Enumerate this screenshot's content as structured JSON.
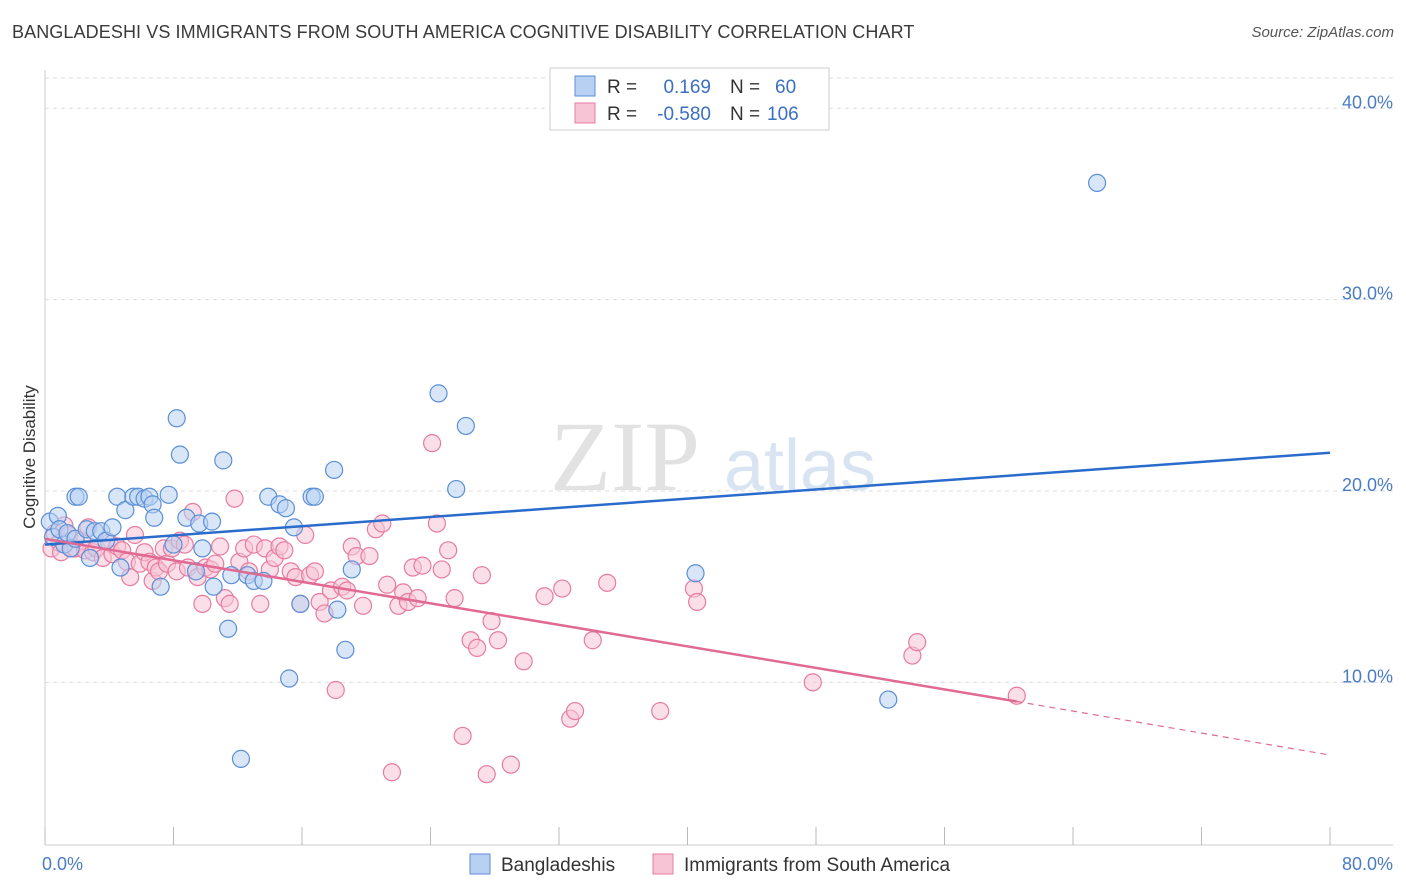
{
  "title": "BANGLADESHI VS IMMIGRANTS FROM SOUTH AMERICA COGNITIVE DISABILITY CORRELATION CHART",
  "source": "Source: ZipAtlas.com",
  "watermark": {
    "zip": "ZIP",
    "atlas": "atlas"
  },
  "colors": {
    "blue": "#5b8fd6",
    "blue_fill": "#b8d1f2",
    "blue_line": "#2a6ccc",
    "pink": "#e87ba0",
    "pink_fill": "#f7c4d6",
    "pink_line": "#e06a93",
    "axis_text": "#4a7cc4",
    "grid": "#dddddd"
  },
  "legend": {
    "r_label": "R =",
    "n_label": "N =",
    "rows": [
      {
        "r": "0.169",
        "n": "60"
      },
      {
        "r": "-0.580",
        "n": "106"
      }
    ]
  },
  "bottom_legend": [
    "Bangladeshis",
    "Immigrants from South America"
  ],
  "chart_data": {
    "type": "scatter",
    "title": "BANGLADESHI VS IMMIGRANTS FROM SOUTH AMERICA COGNITIVE DISABILITY CORRELATION CHART",
    "xlabel": "",
    "ylabel": "Cognitive Disability",
    "xlim": [
      0,
      80
    ],
    "ylim": [
      1.5,
      42
    ],
    "x_tick_labels": [
      "0.0%",
      "80.0%"
    ],
    "y_ticks": [
      10,
      20,
      30,
      40
    ],
    "y_tick_labels": [
      "10.0%",
      "20.0%",
      "30.0%",
      "40.0%"
    ],
    "series": [
      {
        "name": "Bangladeshis",
        "r": 0.169,
        "n": 60,
        "trend": {
          "x0": 0,
          "y0": 17.2,
          "x1": 80,
          "y1": 22.0
        },
        "points": [
          [
            0.3,
            18.4
          ],
          [
            0.5,
            17.6
          ],
          [
            0.8,
            18.7
          ],
          [
            0.9,
            18.0
          ],
          [
            1.2,
            17.2
          ],
          [
            1.4,
            17.8
          ],
          [
            1.6,
            17.0
          ],
          [
            1.9,
            17.5
          ],
          [
            1.9,
            19.7
          ],
          [
            2.1,
            19.7
          ],
          [
            2.6,
            18.0
          ],
          [
            2.8,
            16.5
          ],
          [
            3.1,
            17.9
          ],
          [
            3.5,
            17.9
          ],
          [
            3.8,
            17.4
          ],
          [
            4.2,
            18.1
          ],
          [
            4.5,
            19.7
          ],
          [
            4.7,
            16.0
          ],
          [
            5.0,
            19.0
          ],
          [
            5.5,
            19.7
          ],
          [
            5.8,
            19.7
          ],
          [
            6.2,
            19.6
          ],
          [
            6.5,
            19.7
          ],
          [
            6.7,
            19.3
          ],
          [
            6.8,
            18.6
          ],
          [
            7.2,
            15.0
          ],
          [
            7.7,
            19.8
          ],
          [
            8.0,
            17.2
          ],
          [
            8.2,
            23.8
          ],
          [
            8.4,
            21.9
          ],
          [
            8.8,
            18.6
          ],
          [
            9.4,
            15.8
          ],
          [
            9.6,
            18.3
          ],
          [
            9.8,
            17.0
          ],
          [
            10.4,
            18.4
          ],
          [
            10.5,
            15.0
          ],
          [
            11.1,
            21.6
          ],
          [
            11.4,
            12.8
          ],
          [
            11.6,
            15.6
          ],
          [
            12.2,
            6.0
          ],
          [
            12.6,
            15.6
          ],
          [
            13.0,
            15.3
          ],
          [
            13.6,
            15.3
          ],
          [
            13.9,
            19.7
          ],
          [
            14.6,
            19.3
          ],
          [
            15.0,
            19.1
          ],
          [
            15.2,
            10.2
          ],
          [
            15.5,
            18.1
          ],
          [
            15.9,
            14.1
          ],
          [
            16.6,
            19.7
          ],
          [
            16.8,
            19.7
          ],
          [
            18.0,
            21.1
          ],
          [
            18.2,
            13.8
          ],
          [
            18.7,
            11.7
          ],
          [
            19.1,
            15.9
          ],
          [
            24.5,
            25.1
          ],
          [
            25.6,
            20.1
          ],
          [
            26.2,
            23.4
          ],
          [
            40.5,
            15.7
          ],
          [
            52.5,
            9.1
          ],
          [
            65.5,
            36.1
          ]
        ]
      },
      {
        "name": "Immigrants from South America",
        "r": -0.58,
        "n": 106,
        "trend": {
          "x0": 0,
          "y0": 17.5,
          "x1": 60.5,
          "y1": 9.0
        },
        "trend_dashed": {
          "x0": 60.5,
          "y0": 9.0,
          "x1": 80,
          "y1": 6.2
        },
        "points": [
          [
            0.4,
            17.0
          ],
          [
            0.6,
            17.8
          ],
          [
            0.9,
            17.3
          ],
          [
            1.0,
            16.8
          ],
          [
            1.2,
            18.2
          ],
          [
            1.5,
            17.7
          ],
          [
            1.7,
            17.0
          ],
          [
            1.9,
            17.0
          ],
          [
            2.3,
            17.4
          ],
          [
            2.5,
            16.9
          ],
          [
            2.7,
            18.1
          ],
          [
            3.0,
            16.8
          ],
          [
            3.2,
            17.0
          ],
          [
            3.6,
            16.5
          ],
          [
            4.0,
            17.3
          ],
          [
            4.2,
            16.7
          ],
          [
            4.5,
            17.1
          ],
          [
            4.8,
            16.9
          ],
          [
            5.1,
            16.3
          ],
          [
            5.3,
            15.5
          ],
          [
            5.6,
            17.7
          ],
          [
            5.9,
            16.2
          ],
          [
            6.2,
            16.8
          ],
          [
            6.5,
            16.3
          ],
          [
            6.7,
            15.3
          ],
          [
            6.9,
            16.0
          ],
          [
            7.1,
            15.8
          ],
          [
            7.4,
            17.0
          ],
          [
            7.6,
            16.2
          ],
          [
            7.9,
            17.0
          ],
          [
            8.2,
            15.8
          ],
          [
            8.4,
            17.4
          ],
          [
            8.7,
            17.2
          ],
          [
            8.9,
            16.0
          ],
          [
            9.2,
            18.9
          ],
          [
            9.5,
            15.5
          ],
          [
            9.8,
            14.1
          ],
          [
            10.0,
            16.0
          ],
          [
            10.3,
            15.9
          ],
          [
            10.6,
            16.2
          ],
          [
            10.9,
            17.1
          ],
          [
            11.2,
            14.4
          ],
          [
            11.5,
            14.1
          ],
          [
            11.8,
            19.6
          ],
          [
            12.1,
            16.3
          ],
          [
            12.4,
            17.0
          ],
          [
            12.7,
            15.8
          ],
          [
            13.0,
            17.2
          ],
          [
            13.4,
            14.1
          ],
          [
            13.7,
            17.0
          ],
          [
            14.0,
            15.9
          ],
          [
            14.3,
            16.5
          ],
          [
            14.6,
            17.1
          ],
          [
            14.9,
            16.9
          ],
          [
            15.3,
            15.8
          ],
          [
            15.6,
            15.5
          ],
          [
            15.9,
            14.1
          ],
          [
            16.2,
            17.7
          ],
          [
            16.5,
            15.6
          ],
          [
            16.8,
            15.8
          ],
          [
            17.1,
            14.2
          ],
          [
            17.4,
            13.6
          ],
          [
            17.8,
            14.8
          ],
          [
            18.1,
            9.6
          ],
          [
            18.5,
            15.0
          ],
          [
            18.8,
            14.8
          ],
          [
            19.1,
            17.1
          ],
          [
            19.4,
            16.6
          ],
          [
            19.8,
            14.0
          ],
          [
            20.2,
            16.6
          ],
          [
            20.6,
            18.0
          ],
          [
            21.0,
            18.3
          ],
          [
            21.3,
            15.1
          ],
          [
            21.6,
            5.3
          ],
          [
            22.0,
            14.0
          ],
          [
            22.3,
            14.7
          ],
          [
            22.6,
            14.2
          ],
          [
            22.9,
            16.0
          ],
          [
            23.2,
            14.4
          ],
          [
            23.5,
            16.1
          ],
          [
            24.1,
            22.5
          ],
          [
            24.4,
            18.3
          ],
          [
            24.7,
            15.9
          ],
          [
            25.1,
            16.9
          ],
          [
            25.5,
            14.4
          ],
          [
            26.0,
            7.2
          ],
          [
            26.5,
            12.2
          ],
          [
            26.9,
            11.8
          ],
          [
            27.2,
            15.6
          ],
          [
            27.5,
            5.2
          ],
          [
            27.8,
            13.2
          ],
          [
            28.2,
            12.2
          ],
          [
            29.0,
            5.7
          ],
          [
            29.8,
            11.1
          ],
          [
            31.1,
            14.5
          ],
          [
            32.2,
            14.9
          ],
          [
            32.7,
            8.1
          ],
          [
            33.0,
            8.5
          ],
          [
            34.1,
            12.2
          ],
          [
            35.0,
            15.2
          ],
          [
            38.3,
            8.5
          ],
          [
            40.4,
            14.9
          ],
          [
            40.6,
            14.2
          ],
          [
            47.8,
            10.0
          ],
          [
            54.0,
            11.4
          ],
          [
            54.3,
            12.1
          ],
          [
            60.5,
            9.3
          ]
        ]
      }
    ]
  }
}
